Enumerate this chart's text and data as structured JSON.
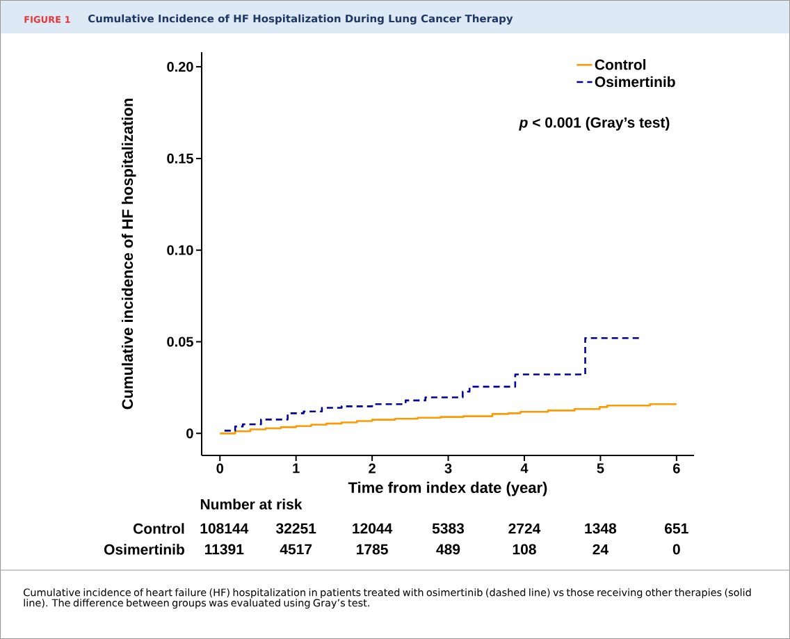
{
  "chart_data": {
    "type": "step",
    "title": "FIGURE 1",
    "subtitle": "Cumulative Incidence of HF Hospitalization During Lung Cancer Therapy",
    "xlabel": "Time from index date (year)",
    "ylabel": "Cumulative incidence of HF hospitalization",
    "xlim": [
      -0.24,
      6.23
    ],
    "ylim": [
      -0.012,
      0.208
    ],
    "xticks": [
      0,
      1,
      2,
      3,
      4,
      5,
      6
    ],
    "yticks": [
      0,
      0.05,
      {
        "value": 0.1,
        "label": "0.10"
      },
      0.15,
      {
        "value": 0.2,
        "label": "0.20"
      }
    ],
    "legend": "top right",
    "series": [
      {
        "name": "Control",
        "color": "#ff9900",
        "line_style": "solid",
        "x": [
          0,
          0.2,
          0.4,
          0.6,
          0.8,
          1,
          1.2,
          1.4,
          1.6,
          1.8,
          2,
          2.3,
          2.6,
          2.9,
          3.2,
          3.58,
          3.79,
          3.95,
          4.31,
          4.66,
          4.99,
          5.09,
          5.65,
          6.0
        ],
        "values": [
          0,
          0.0012,
          0.0022,
          0.0028,
          0.0034,
          0.004,
          0.0048,
          0.0054,
          0.006,
          0.0068,
          0.0075,
          0.008,
          0.0086,
          0.009,
          0.0094,
          0.0106,
          0.011,
          0.0118,
          0.0125,
          0.0133,
          0.0144,
          0.0152,
          0.016,
          0.016
        ]
      },
      {
        "name": "Osimertinib",
        "color": "#000099",
        "line_style": "dashed",
        "x": [
          0.06,
          0.2,
          0.3,
          0.54,
          0.89,
          1.1,
          1.34,
          1.6,
          2.0,
          2.44,
          2.7,
          3.19,
          3.28,
          3.88,
          4.8,
          5.53
        ],
        "values": [
          0.0015,
          0.0038,
          0.005,
          0.0076,
          0.011,
          0.012,
          0.014,
          0.0148,
          0.016,
          0.018,
          0.0197,
          0.0228,
          0.0255,
          0.0322,
          0.052,
          0.052
        ]
      }
    ],
    "annotations": [
      "*p* < 0.001 (Gray’s test)",
      "Number at risk",
      "Control",
      "108144",
      "32251",
      "12044",
      "5383",
      "2724",
      "1348",
      "651",
      "Osimertinib",
      "11391",
      "4517",
      "1785",
      "489",
      "108",
      "24",
      "0",
      "Cumulative incidence of heart failure (HF) hospitalization in patients treated with osimertinib (dashed line) vs those receiving other therapies (solid line). The difference between groups was evaluated using Gray’s test."
    ]
  }
}
